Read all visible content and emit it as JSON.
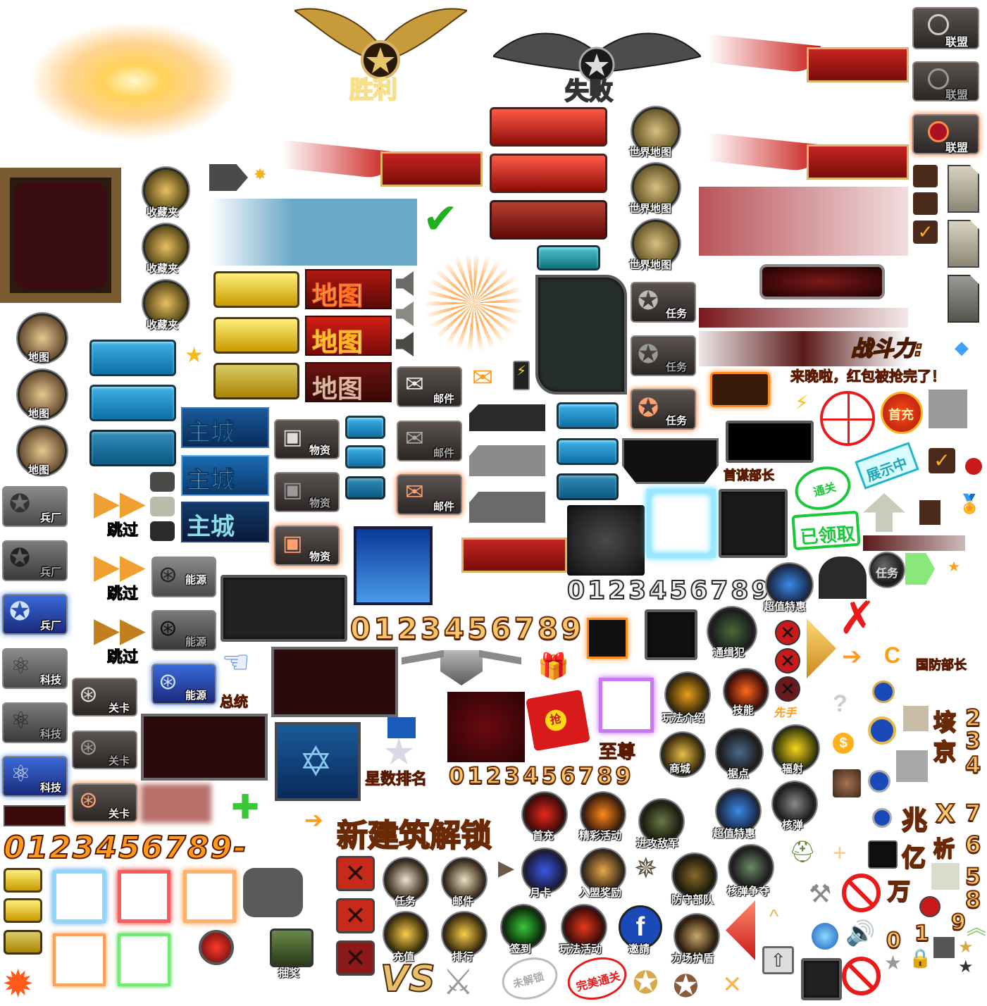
{
  "labels": {
    "victory": "胜利",
    "defeat": "失败",
    "alliance": "联盟",
    "world_map": "世界地图",
    "favorites": "收藏夹",
    "map": "地图",
    "map_big": "地图",
    "mission": "任务",
    "mail": "邮件",
    "main_city": "主城",
    "supplies": "物资",
    "factory": "兵厂",
    "tech": "科技",
    "skip": "跳过",
    "energy": "能源",
    "level": "关卡",
    "commander": "总统",
    "combat_power": "战斗力:",
    "red_packet_late": "来晚啦，红包被抢完了！",
    "first_charge": "首充",
    "chief_of_staff": "首谋部长",
    "cleared": "通关",
    "claimed": "已领取",
    "showing": "展示中",
    "super_deal": "超值特惠",
    "wanted": "通缉犯",
    "gameplay_intro": "玩法介绍",
    "skill": "技能",
    "first_hand": "先手",
    "defense_minister": "国防部长",
    "supreme": "至尊",
    "star_rank": "星数排名",
    "shop": "商城",
    "stronghold": "据点",
    "radiation": "辐射",
    "new_building_unlock": "新建筑解锁",
    "first_recharge": "首充",
    "event": "精彩活动",
    "attack_enemy": "进攻敌军",
    "nuke": "核弹",
    "month_card": "月卡",
    "alliance_reward": "入盟奖励",
    "defense_troops": "防守部队",
    "nuke_battle": "核弹争夺",
    "recharge": "充值",
    "ranking": "排行",
    "sign_in": "签到",
    "play_event": "玩法活动",
    "invite": "邀請",
    "force_shield": "力场护盾",
    "vs": "VS",
    "not_unlocked": "未解锁",
    "perfect_clear": "完美通关",
    "red_packet_grab": "抢",
    "lottery": "抽奖",
    "glyph_hai": "垓",
    "glyph_jing": "京",
    "glyph_zhao": "兆",
    "glyph_x": "X",
    "glyph_xi": "析",
    "glyph_yi": "亿",
    "glyph_wan": "万"
  },
  "numbers": {
    "digits_dark": "0123456789",
    "digits_gold_big": "0123456789",
    "digits_gold_small": "0123456789",
    "digits_orange": "0123456789-"
  },
  "side_digits_col1": [
    "2",
    "3",
    "4"
  ],
  "side_digits_col2": [
    "7",
    "6",
    "5",
    "8",
    "9"
  ],
  "side_digits_bottom": [
    "0",
    "1"
  ],
  "colors": {
    "gold": "#d9b46a",
    "red": "#b81814",
    "blue": "#1e8fd0",
    "green": "#3ac83a",
    "orange": "#ff8a1a"
  }
}
